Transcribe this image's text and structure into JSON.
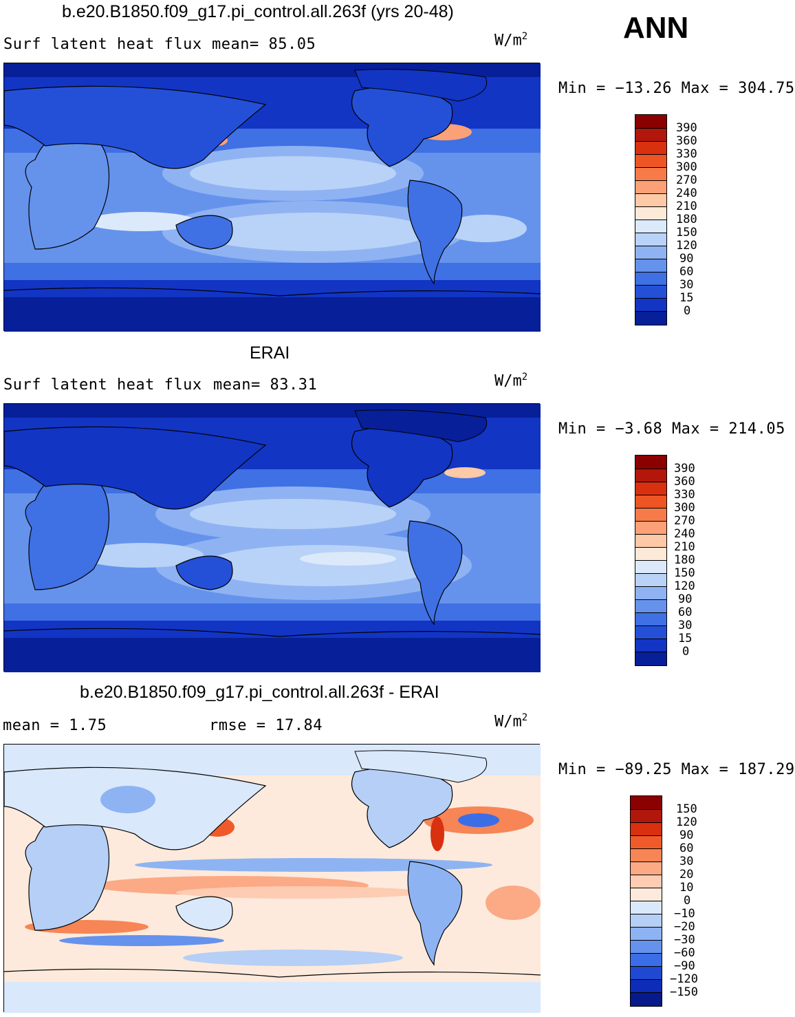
{
  "ann_label": "ANN",
  "panels": [
    {
      "title": "b.e20.B1850.f09_g17.pi_control.all.263f (yrs 20-48)",
      "left_label": "Surf latent heat flux",
      "center_label": "mean=  85.05",
      "units_base": "W/m",
      "units_exp": "2",
      "minmax": "Min = −13.26 Max = 304.75",
      "cbar_labels": [
        "390",
        "360",
        "330",
        "300",
        "270",
        "240",
        "210",
        "180",
        "150",
        "120",
        "90",
        "60",
        "30",
        "15",
        "0"
      ],
      "cbar_colors": [
        "#8b0000",
        "#b2170b",
        "#d93010",
        "#ee5524",
        "#f77b48",
        "#fca177",
        "#fdc9a6",
        "#fde9d8",
        "#dbe9fb",
        "#b9d2f7",
        "#8fb3f2",
        "#6593ec",
        "#3f70e4",
        "#2450d8",
        "#1235c4",
        "#071f98"
      ]
    },
    {
      "title": "ERAI",
      "left_label": "Surf latent heat flux",
      "center_label": "mean=  83.31",
      "units_base": "W/m",
      "units_exp": "2",
      "minmax": "Min =  −3.68 Max = 214.05",
      "cbar_labels": [
        "390",
        "360",
        "330",
        "300",
        "270",
        "240",
        "210",
        "180",
        "150",
        "120",
        "90",
        "60",
        "30",
        "15",
        "0"
      ],
      "cbar_colors": [
        "#8b0000",
        "#b2170b",
        "#d93010",
        "#ee5524",
        "#f77b48",
        "#fca177",
        "#fdc9a6",
        "#fde9d8",
        "#dbe9fb",
        "#b9d2f7",
        "#8fb3f2",
        "#6593ec",
        "#3f70e4",
        "#2450d8",
        "#1235c4",
        "#071f98"
      ]
    },
    {
      "title": "b.e20.B1850.f09_g17.pi_control.all.263f - ERAI",
      "left_label": "mean =    1.75",
      "center_label": "rmse =   17.84",
      "units_base": "W/m",
      "units_exp": "2",
      "minmax": "Min = −89.25 Max = 187.29",
      "cbar_labels": [
        "150",
        "120",
        "90",
        "60",
        "30",
        "20",
        "10",
        "0",
        "−10",
        "−20",
        "−30",
        "−60",
        "−90",
        "−120",
        "−150"
      ],
      "cbar_colors": [
        "#8b0000",
        "#b2170b",
        "#d93010",
        "#f05a2a",
        "#f78555",
        "#fbaa85",
        "#fdccb2",
        "#fdeadc",
        "#d9e8fb",
        "#b5cff6",
        "#8eb3f2",
        "#6592ec",
        "#3b6ee6",
        "#1f49d2",
        "#0d2cb8",
        "#061a8c"
      ]
    }
  ]
}
